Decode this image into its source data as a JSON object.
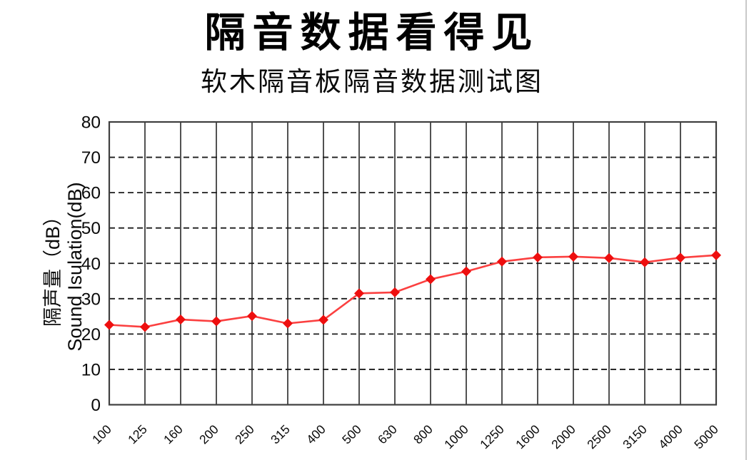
{
  "header": {
    "title": "隔音数据看得见",
    "subtitle": "软木隔音板隔音数据测试图"
  },
  "chart_data": {
    "type": "line",
    "categories": [
      "100",
      "125",
      "160",
      "200",
      "250",
      "315",
      "400",
      "500",
      "630",
      "800",
      "1000",
      "1250",
      "1600",
      "2000",
      "2500",
      "3150",
      "4000",
      "5000"
    ],
    "series": [
      {
        "name": "隔声量",
        "values": [
          22.6,
          22.0,
          24.1,
          23.6,
          25.1,
          23.0,
          24.0,
          31.5,
          31.8,
          35.5,
          37.7,
          40.5,
          41.7,
          41.9,
          41.5,
          40.3,
          41.6,
          42.3
        ]
      }
    ],
    "ylabel_cn": "隔声量（dB）",
    "ylabel_en": "Sound Isulation(dB)",
    "xlabel": "",
    "ylim": [
      0,
      80
    ],
    "yticks": [
      0,
      10,
      20,
      30,
      40,
      50,
      60,
      70,
      80
    ],
    "marker": "diamond",
    "legend": "none",
    "grid": {
      "vertical": "solid",
      "horizontal": "dashed"
    },
    "colors": {
      "line": "#fb4040",
      "marker": "#ee0f0f",
      "solid_grid": "#3f3f3f",
      "dashed_grid": "#1c1c1c",
      "border": "#3f3f3f",
      "tick_text": "#0a0a0a"
    }
  }
}
